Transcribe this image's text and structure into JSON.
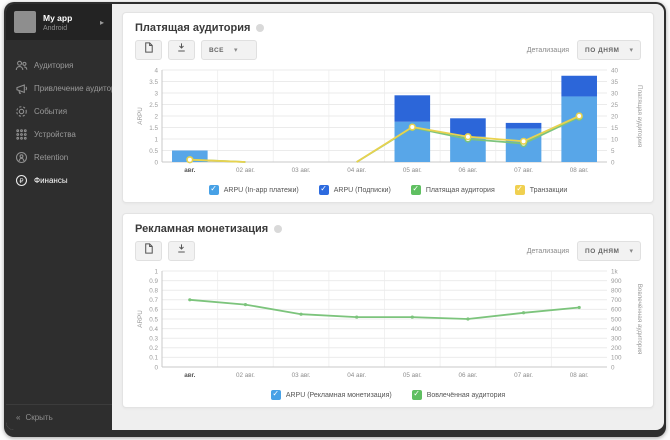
{
  "sidebar": {
    "app_name": "My app",
    "platform": "Android",
    "items": [
      {
        "label": "Аудитория",
        "active": false
      },
      {
        "label": "Привлечение аудитории",
        "active": false
      },
      {
        "label": "События",
        "active": false
      },
      {
        "label": "Устройства",
        "active": false
      },
      {
        "label": "Retention",
        "active": false
      },
      {
        "label": "Финансы",
        "active": true
      }
    ],
    "collapse_label": "Скрыть",
    "collapse_chevron": "«",
    "header_caret": "▸"
  },
  "panels": [
    {
      "title": "Платящая аудитория",
      "toolbar": {
        "filter_label": "ВСЕ"
      },
      "detail_label": "Детализация",
      "detail_value": "ПО ДНЯМ",
      "legend": [
        {
          "label": "ARPU (In-app платежи)",
          "color": "#47a1e6",
          "checked": true
        },
        {
          "label": "ARPU (Подписки)",
          "color": "#2d6bdf",
          "checked": true
        },
        {
          "label": "Платящая аудитория",
          "color": "#5fbf61",
          "checked": true
        },
        {
          "label": "Транзакции",
          "color": "#f0d050",
          "checked": true
        }
      ]
    },
    {
      "title": "Рекламная монетизация",
      "detail_label": "Детализация",
      "detail_value": "ПО ДНЯМ",
      "legend": [
        {
          "label": "ARPU (Рекламная монетизация)",
          "color": "#47a1e6",
          "checked": true
        },
        {
          "label": "Вовлечённая аудитория",
          "color": "#5fbf61",
          "checked": true
        }
      ]
    }
  ],
  "chart_data": [
    {
      "type": "bar",
      "categories": [
        "авг.",
        "02 авг.",
        "03 авг.",
        "04 авг.",
        "05 авг.",
        "06 авг.",
        "07 авг.",
        "08 авг."
      ],
      "left_axis": {
        "label": "ARPU",
        "min": 0,
        "max": 4,
        "step": 0.5
      },
      "right_axis": {
        "label": "Платящая аудитория",
        "min": 0,
        "max": 40,
        "step": 5
      },
      "grid": true,
      "legend_position": "bottom",
      "bar_series": [
        {
          "name": "ARPU (In-app платежи)",
          "color": "#58a6e8",
          "axis": "left",
          "values": [
            0.5,
            0,
            0,
            0,
            1.75,
            1.1,
            1.45,
            2.85
          ]
        },
        {
          "name": "ARPU (Подписки)",
          "color": "#2c66d9",
          "axis": "left",
          "values": [
            0,
            0,
            0,
            0,
            1.15,
            0.8,
            0.25,
            0.9
          ]
        }
      ],
      "line_series": [
        {
          "name": "Платящая аудитория",
          "color": "#7cc47c",
          "axis": "right",
          "markers": "ring",
          "values": [
            1,
            0,
            null,
            0,
            15,
            10,
            8,
            19.5
          ]
        },
        {
          "name": "Транзакции",
          "color": "#e8d24f",
          "axis": "right",
          "markers": "ring",
          "values": [
            1,
            0,
            null,
            0,
            15.2,
            11,
            9,
            20
          ]
        }
      ]
    },
    {
      "type": "line",
      "categories": [
        "авг.",
        "02 авг.",
        "03 авг.",
        "04 авг.",
        "05 авг.",
        "06 авг.",
        "07 авг.",
        "08 авг."
      ],
      "left_axis": {
        "label": "ARPU",
        "min": 0,
        "max": 1,
        "step": 0.1
      },
      "right_axis": {
        "label": "Вовлечённая аудитория",
        "min": 0,
        "max": 1000,
        "step": 100,
        "format_k": true
      },
      "grid": true,
      "legend_position": "bottom",
      "line_series": [
        {
          "name": "Вовлечённая аудитория",
          "color": "#7cc47c",
          "axis": "right",
          "markers": "dot",
          "values": [
            700,
            650,
            550,
            520,
            520,
            500,
            565,
            620
          ]
        }
      ]
    }
  ]
}
